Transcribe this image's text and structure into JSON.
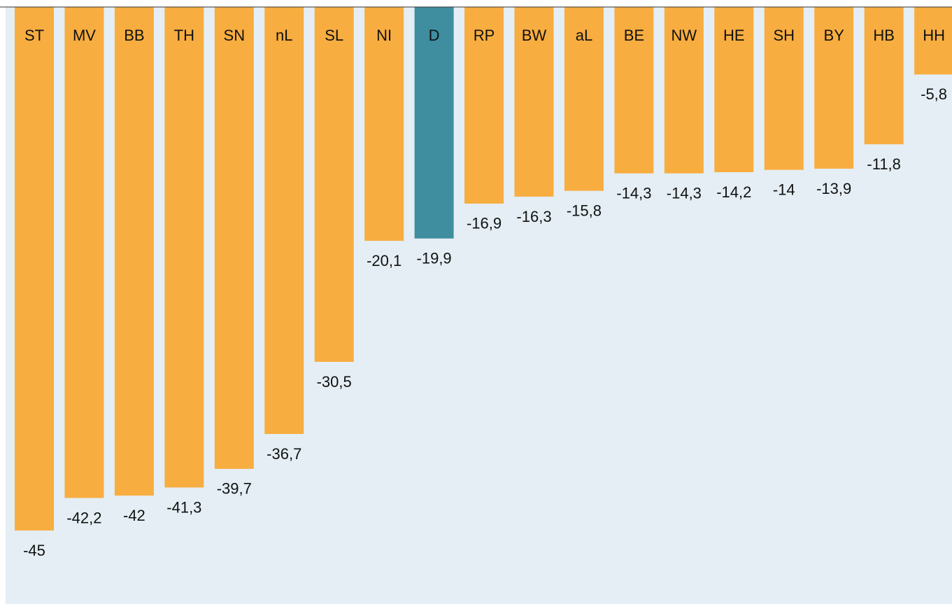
{
  "chart_data": {
    "type": "bar",
    "categories": [
      "ST",
      "MV",
      "BB",
      "TH",
      "SN",
      "nL",
      "SL",
      "NI",
      "D",
      "RP",
      "BW",
      "aL",
      "BE",
      "NW",
      "HE",
      "SH",
      "BY",
      "HB",
      "HH"
    ],
    "values": [
      -45,
      -42.2,
      -42,
      -41.3,
      -39.7,
      -36.7,
      -30.5,
      -20.1,
      -19.9,
      -16.9,
      -16.3,
      -15.8,
      -14.3,
      -14.3,
      -14.2,
      -14,
      -13.9,
      -11.8,
      -5.8
    ],
    "value_labels": [
      "-45",
      "-42,2",
      "-42",
      "-41,3",
      "-39,7",
      "-36,7",
      "-30,5",
      "-20,1",
      "-19,9",
      "-16,9",
      "-16,3",
      "-15,8",
      "-14,3",
      "-14,3",
      "-14,2",
      "-14",
      "-13,9",
      "-11,8",
      "-5,8"
    ],
    "colors": [
      "#f8ad40",
      "#f8ad40",
      "#f8ad40",
      "#f8ad40",
      "#f8ad40",
      "#f8ad40",
      "#f8ad40",
      "#f8ad40",
      "#3f8ea0",
      "#f8ad40",
      "#f8ad40",
      "#f8ad40",
      "#f8ad40",
      "#f8ad40",
      "#f8ad40",
      "#f8ad40",
      "#f8ad40",
      "#f8ad40",
      "#f8ad40"
    ],
    "ylim": [
      -45,
      0
    ]
  }
}
